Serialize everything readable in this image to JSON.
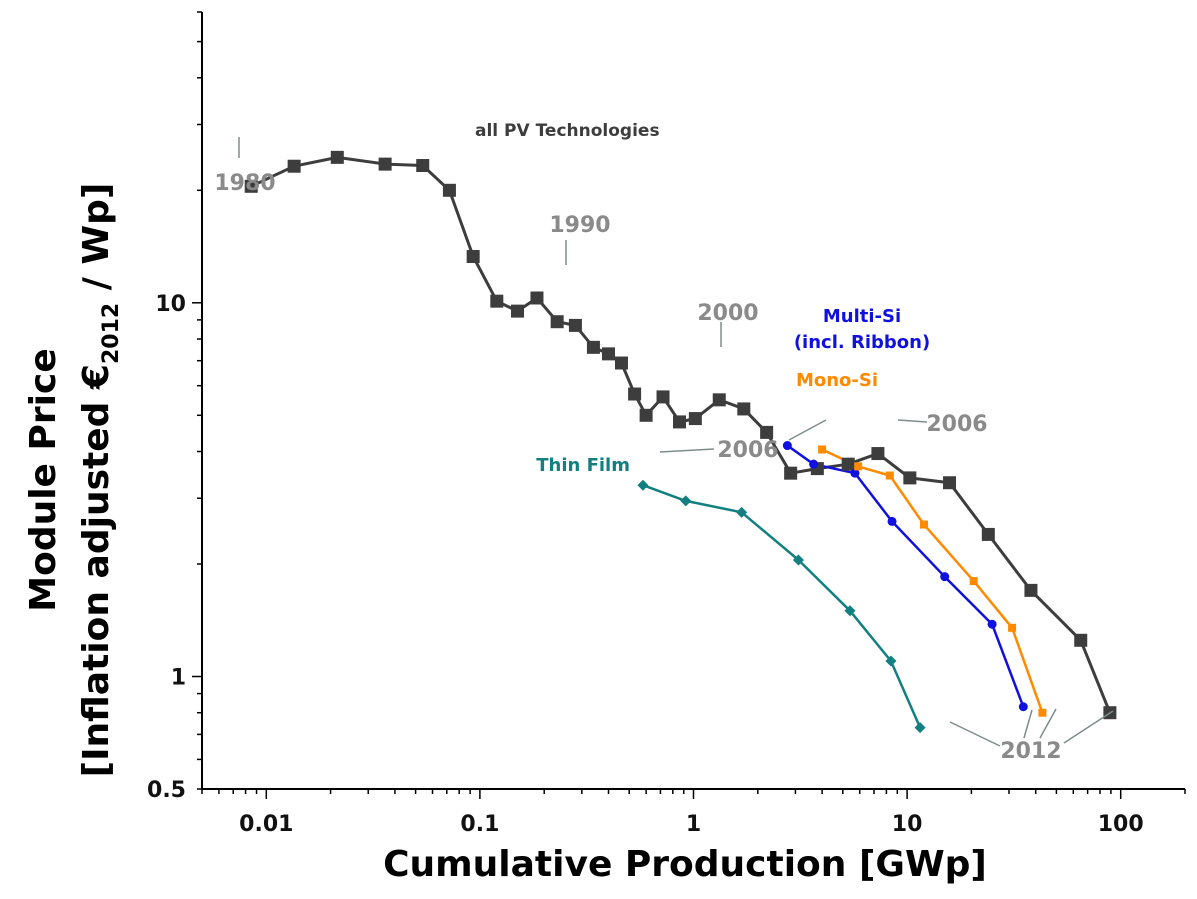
{
  "chart_data": {
    "type": "scatter",
    "xscale": "log",
    "yscale": "log",
    "xlim": [
      0.005,
      200
    ],
    "ylim": [
      0.5,
      60
    ],
    "xlabel": "Cumulative Production [GWp]",
    "ylabel_line1": "Module Price",
    "ylabel_line2_pre": "[Inflation adjusted €",
    "ylabel_sub": "2012",
    "ylabel_line2_post": " / Wp]",
    "xticks": [
      {
        "value": 0.01,
        "label": "0.01"
      },
      {
        "value": 0.1,
        "label": "0.1"
      },
      {
        "value": 1,
        "label": "1"
      },
      {
        "value": 10,
        "label": "10"
      },
      {
        "value": 100,
        "label": "100"
      }
    ],
    "yticks": [
      {
        "value": 0.5,
        "label": "0.5"
      },
      {
        "value": 1,
        "label": "1"
      },
      {
        "value": 10,
        "label": "10"
      }
    ],
    "series": [
      {
        "name": "all PV Technologies",
        "color": "#3d3d3d",
        "marker": "square",
        "points": [
          [
            0.0085,
            20.5
          ],
          [
            0.0135,
            23.2
          ],
          [
            0.0215,
            24.5
          ],
          [
            0.036,
            23.5
          ],
          [
            0.054,
            23.3
          ],
          [
            0.072,
            20.0
          ],
          [
            0.093,
            13.3
          ],
          [
            0.12,
            10.1
          ],
          [
            0.15,
            9.5
          ],
          [
            0.185,
            10.3
          ],
          [
            0.23,
            8.9
          ],
          [
            0.28,
            8.7
          ],
          [
            0.34,
            7.6
          ],
          [
            0.4,
            7.3
          ],
          [
            0.46,
            6.9
          ],
          [
            0.53,
            5.7
          ],
          [
            0.6,
            5.0
          ],
          [
            0.72,
            5.6
          ],
          [
            0.86,
            4.8
          ],
          [
            1.02,
            4.9
          ],
          [
            1.32,
            5.5
          ],
          [
            1.72,
            5.2
          ],
          [
            2.2,
            4.5
          ],
          [
            2.85,
            3.5
          ],
          [
            3.8,
            3.6
          ],
          [
            5.3,
            3.7
          ],
          [
            7.3,
            3.95
          ],
          [
            10.3,
            3.4
          ],
          [
            15.8,
            3.3
          ],
          [
            24.0,
            2.4
          ],
          [
            38.0,
            1.7
          ],
          [
            65.0,
            1.25
          ],
          [
            89.0,
            0.8
          ]
        ]
      },
      {
        "name": "Multi-Si (incl. Ribbon)",
        "color": "#1010e0",
        "marker": "circle",
        "points": [
          [
            2.75,
            4.15
          ],
          [
            3.65,
            3.7
          ],
          [
            5.7,
            3.5
          ],
          [
            8.5,
            2.6
          ],
          [
            15.0,
            1.85
          ],
          [
            25.0,
            1.38
          ],
          [
            35.0,
            0.83
          ]
        ]
      },
      {
        "name": "Mono-Si",
        "color": "#ff8a00",
        "marker": "square",
        "points": [
          [
            4.0,
            4.05
          ],
          [
            5.9,
            3.65
          ],
          [
            8.3,
            3.45
          ],
          [
            12.0,
            2.55
          ],
          [
            20.5,
            1.8
          ],
          [
            31.0,
            1.35
          ],
          [
            43.0,
            0.8
          ]
        ]
      },
      {
        "name": "Thin Film",
        "color": "#128080",
        "marker": "diamond",
        "points": [
          [
            0.58,
            3.25
          ],
          [
            0.92,
            2.95
          ],
          [
            1.68,
            2.75
          ],
          [
            3.1,
            2.05
          ],
          [
            5.4,
            1.5
          ],
          [
            8.4,
            1.1
          ],
          [
            11.5,
            0.73
          ]
        ]
      }
    ],
    "annotations": [
      {
        "text": "1980",
        "color": "#8a8a8a",
        "x": 0.0085,
        "y": 20.5
      },
      {
        "text": "1990",
        "color": "#8a8a8a",
        "x": 0.23,
        "y": 8.9
      },
      {
        "text": "2000",
        "color": "#8a8a8a",
        "x": 1.32,
        "y": 5.5
      },
      {
        "text": "2006",
        "color": "#8a8a8a",
        "x": 7.3,
        "y": 3.95
      },
      {
        "text": "2006",
        "color": "#8a8a8a",
        "x": 0.58,
        "y": 3.25
      },
      {
        "text": "2012",
        "color": "#8a8a8a",
        "x": 35.0,
        "y": 0.83
      }
    ],
    "grid": false,
    "legend": "inline labels"
  }
}
